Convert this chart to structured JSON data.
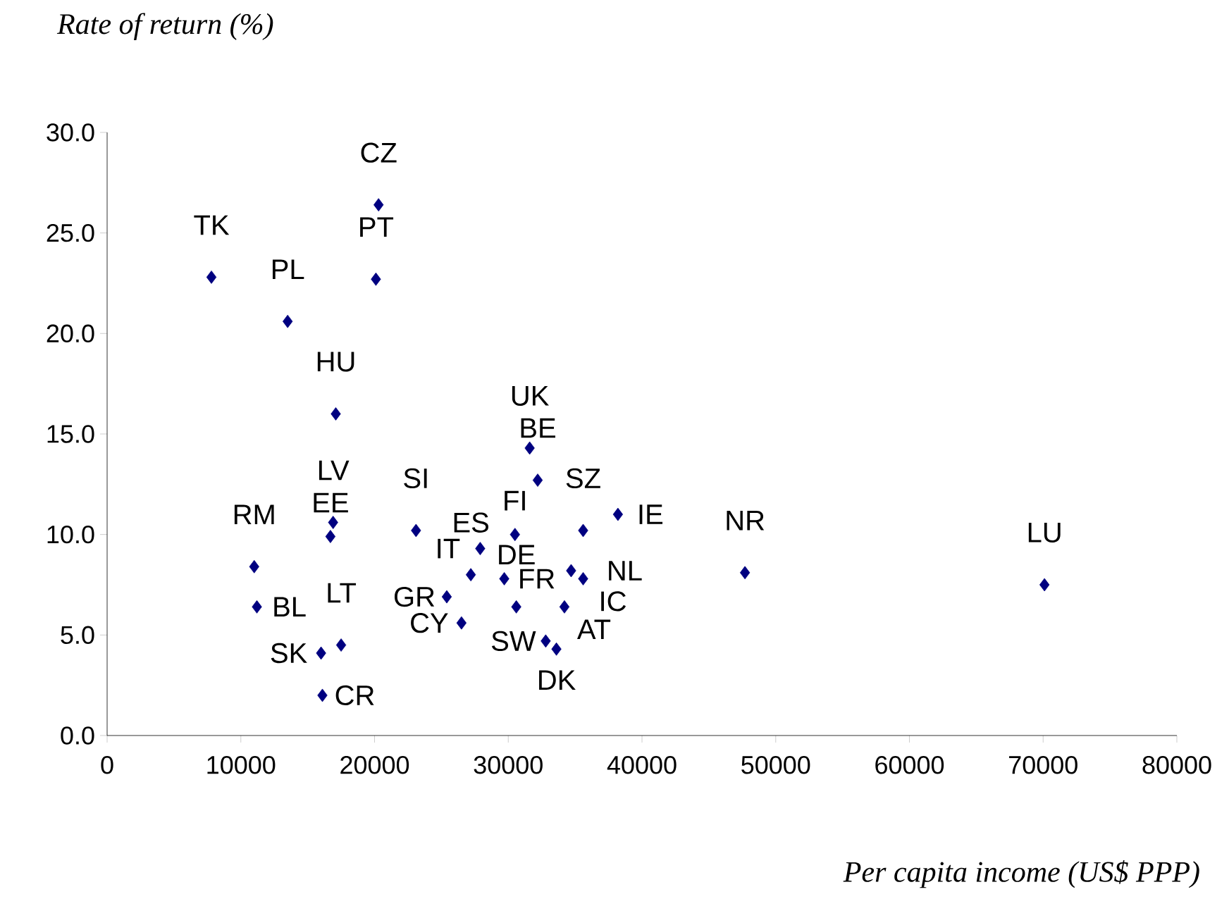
{
  "chart_data": {
    "type": "scatter",
    "xlabel": "Per capita income (US$ PPP)",
    "ylabel": "Rate of return (%)",
    "x": [
      7800,
      13500,
      20300,
      20100,
      17100,
      16900,
      16700,
      11000,
      11200,
      16000,
      17500,
      16100,
      23100,
      31600,
      32200,
      30500,
      27900,
      27200,
      25400,
      26500,
      29700,
      30600,
      35600,
      38200,
      34700,
      35600,
      34200,
      32800,
      33600,
      47700,
      70100
    ],
    "values": [
      22.8,
      20.6,
      26.4,
      22.7,
      16.0,
      10.6,
      9.9,
      8.4,
      6.4,
      4.1,
      4.5,
      2.0,
      10.2,
      14.3,
      12.7,
      10.0,
      9.3,
      8.0,
      6.9,
      5.6,
      7.8,
      6.4,
      10.2,
      11.0,
      8.2,
      7.8,
      6.4,
      4.7,
      4.3,
      8.1,
      7.5
    ],
    "color": "#000080",
    "marker": "diamond",
    "xlim": [
      0,
      80000
    ],
    "xticks": [
      0,
      10000,
      20000,
      30000,
      40000,
      50000,
      60000,
      70000,
      80000
    ],
    "ylim": [
      0,
      30
    ],
    "yticks": [
      {
        "value": 0,
        "label": "0.0"
      },
      {
        "value": 5,
        "label": "5.0"
      },
      {
        "value": 10,
        "label": "10.0"
      },
      {
        "value": 15,
        "label": "15.0"
      },
      {
        "value": 20,
        "label": "20.0"
      },
      {
        "value": 25,
        "label": "25.0"
      },
      {
        "value": 30,
        "label": "30.0"
      }
    ],
    "annotations": [
      {
        "text": "TK",
        "x": 7800,
        "y": 22.8
      },
      {
        "text": "PL",
        "x": 13500,
        "y": 20.6
      },
      {
        "text": "CZ",
        "x": 20300,
        "y": 26.4
      },
      {
        "text": "PT",
        "x": 20100,
        "y": 22.7
      },
      {
        "text": "HU",
        "x": 17100,
        "y": 16.0
      },
      {
        "text": "LV",
        "x": 16900,
        "y": 10.6
      },
      {
        "text": "EE",
        "x": 16700,
        "y": 9.9
      },
      {
        "text": "RM",
        "x": 11000,
        "y": 8.4
      },
      {
        "text": "BL",
        "x": 11200,
        "y": 6.4
      },
      {
        "text": "SK",
        "x": 16000,
        "y": 4.1
      },
      {
        "text": "LT",
        "x": 17500,
        "y": 4.5
      },
      {
        "text": "CR",
        "x": 16100,
        "y": 2.0
      },
      {
        "text": "SI",
        "x": 23100,
        "y": 10.2
      },
      {
        "text": "UK",
        "x": 31600,
        "y": 14.3
      },
      {
        "text": "BE",
        "x": 32200,
        "y": 12.7
      },
      {
        "text": "FI",
        "x": 30500,
        "y": 10.0
      },
      {
        "text": "IT",
        "x": 27900,
        "y": 9.3
      },
      {
        "text": "ES",
        "x": 27200,
        "y": 8.0
      },
      {
        "text": "GR",
        "x": 25400,
        "y": 6.9
      },
      {
        "text": "CY",
        "x": 26500,
        "y": 5.6
      },
      {
        "text": "FR",
        "x": 29700,
        "y": 7.8
      },
      {
        "text": "DE",
        "x": 30600,
        "y": 6.4
      },
      {
        "text": "SZ",
        "x": 35600,
        "y": 10.2
      },
      {
        "text": "IE",
        "x": 38200,
        "y": 11.0
      },
      {
        "text": "NL",
        "x": 34700,
        "y": 8.2
      },
      {
        "text": "IC",
        "x": 35600,
        "y": 7.8
      },
      {
        "text": "AT",
        "x": 34200,
        "y": 6.4
      },
      {
        "text": "SW",
        "x": 32800,
        "y": 4.7
      },
      {
        "text": "DK",
        "x": 33600,
        "y": 4.3
      },
      {
        "text": "NR",
        "x": 47700,
        "y": 8.1
      },
      {
        "text": "LU",
        "x": 70100,
        "y": 7.5
      }
    ]
  }
}
